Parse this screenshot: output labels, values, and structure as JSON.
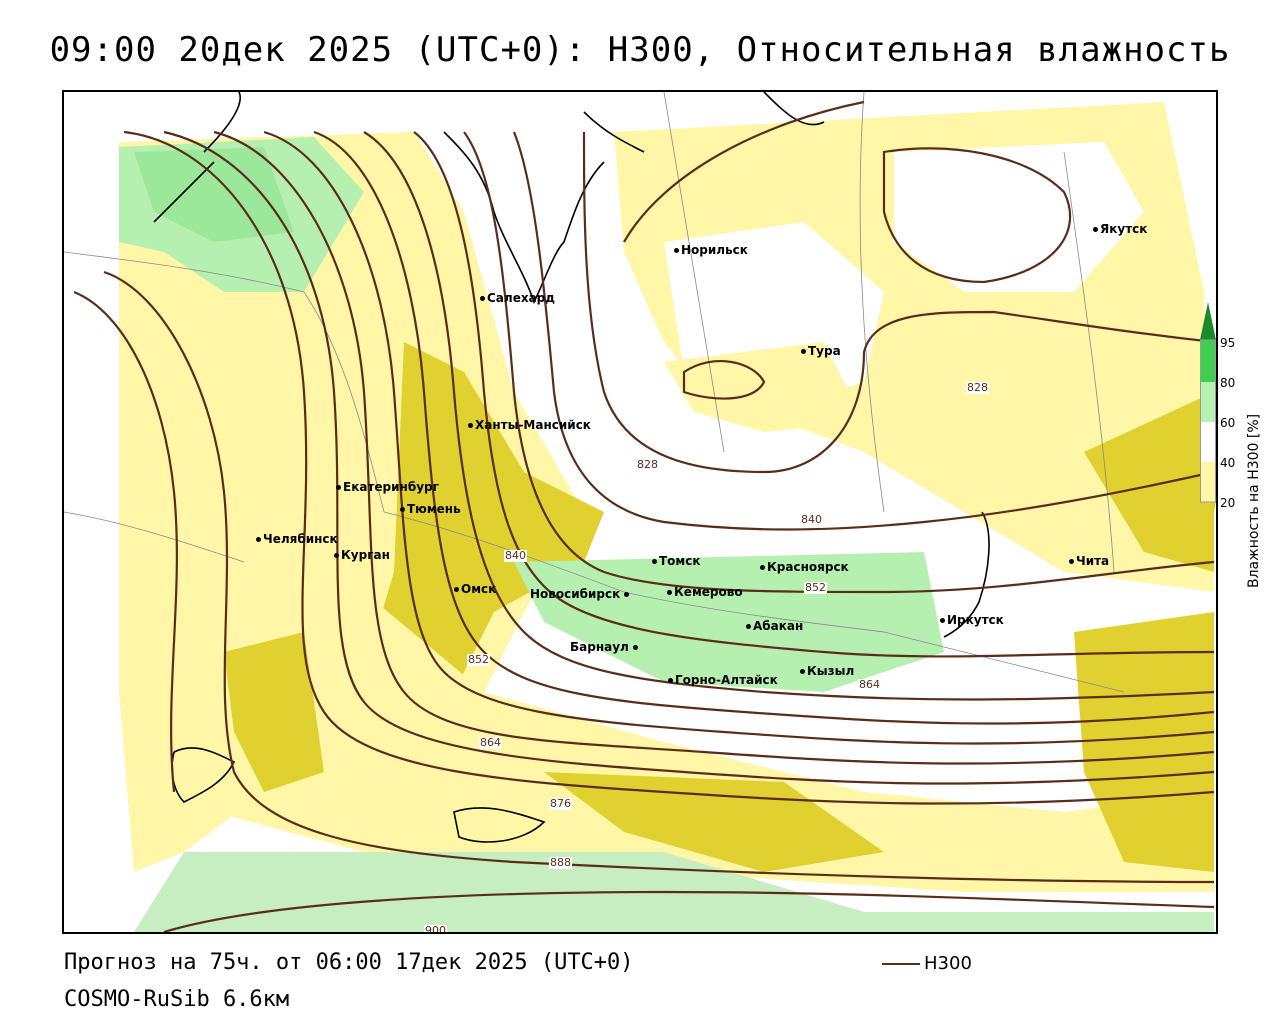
{
  "title": "09:00 20дек 2025 (UTC+0): H300, Относительная влажность",
  "footer": {
    "forecast": "Прогноз на 75ч. от 06:00 17дек 2025 (UTC+0)",
    "model": "COSMO-RuSib 6.6км"
  },
  "legend": {
    "line_label": "H300",
    "line_color": "#5a2d1a",
    "colorbar_title": "Влажность на H300 [%]",
    "ticks": [
      "95",
      "80",
      "60",
      "40",
      "20"
    ],
    "colors": {
      "c95": "#1a8a2a",
      "c80": "#3fcf4f",
      "c60": "#b6f0b0",
      "c40": "#ffffff",
      "c20": "#fff6a8",
      "c0": "#e0d030"
    }
  },
  "cities": [
    {
      "name": "Норильск"
    },
    {
      "name": "Якутск"
    },
    {
      "name": "Салехард"
    },
    {
      "name": "Тура"
    },
    {
      "name": "Ханты-Мансийск"
    },
    {
      "name": "Екатеринбург"
    },
    {
      "name": "Тюмень"
    },
    {
      "name": "Челябинск"
    },
    {
      "name": "Курган"
    },
    {
      "name": "Омск"
    },
    {
      "name": "Томск"
    },
    {
      "name": "Красноярск"
    },
    {
      "name": "Новосибирск"
    },
    {
      "name": "Кемерово"
    },
    {
      "name": "Абакан"
    },
    {
      "name": "Иркутск"
    },
    {
      "name": "Барнаул"
    },
    {
      "name": "Горно-Алтайск"
    },
    {
      "name": "Кызыл"
    },
    {
      "name": "Чита"
    }
  ],
  "contour_labels": [
    "828",
    "828",
    "840",
    "840",
    "852",
    "852",
    "864",
    "864",
    "876",
    "888",
    "900"
  ]
}
